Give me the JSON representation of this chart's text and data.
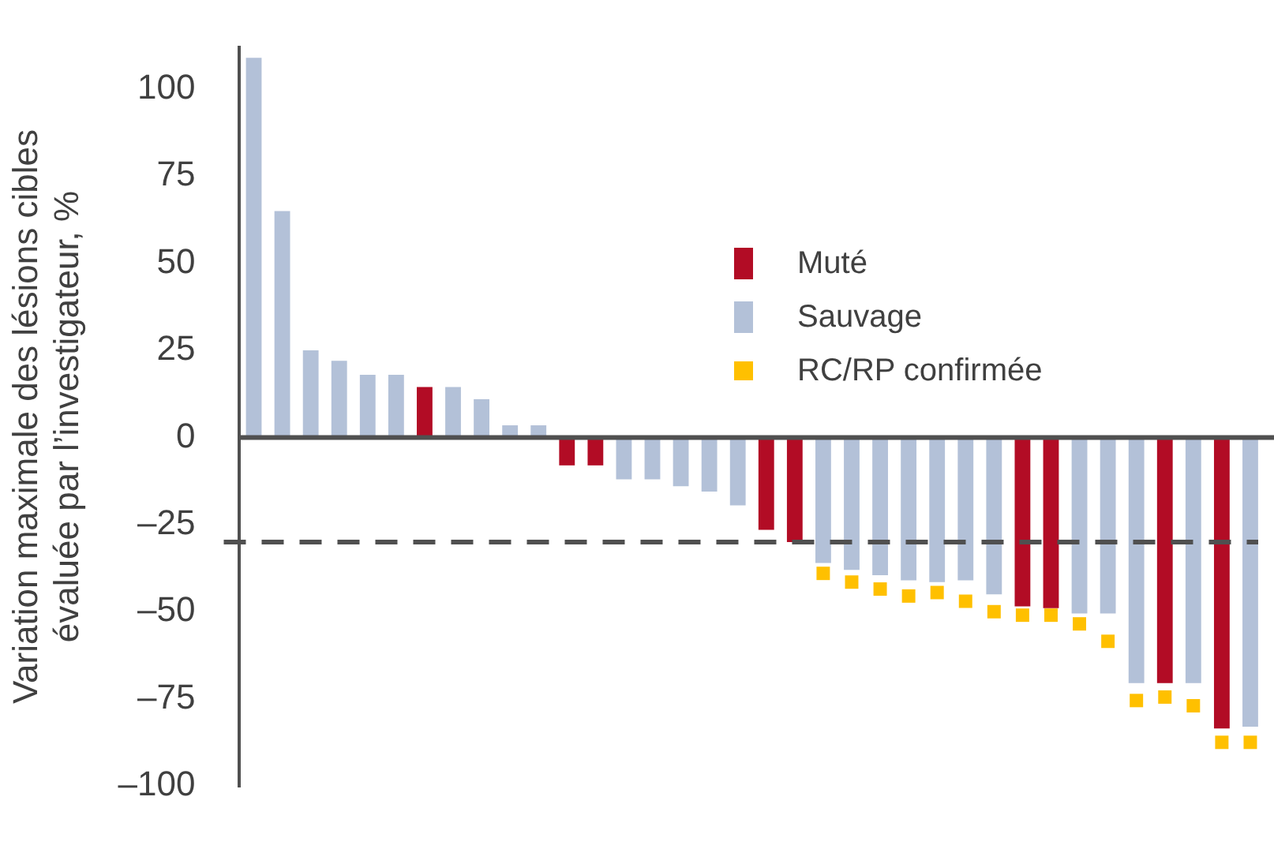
{
  "chart_data": {
    "type": "bar",
    "ylabel": "Variation maximale des lésions cibles\névaluée par l’investigateur, %",
    "categories": [
      null,
      null,
      null,
      null,
      null,
      null,
      null,
      null,
      null,
      null,
      null,
      null,
      null,
      null,
      null,
      null,
      null,
      null,
      null,
      null,
      null,
      null,
      null,
      null,
      null,
      null,
      null,
      null,
      null,
      null,
      null,
      null,
      null,
      null,
      null,
      null
    ],
    "series": [
      {
        "name": "Muté",
        "color": "#b20c25",
        "values": [
          null,
          null,
          null,
          null,
          null,
          null,
          14.5,
          null,
          null,
          null,
          null,
          -8,
          -8,
          null,
          null,
          null,
          null,
          null,
          -26.5,
          -30,
          null,
          null,
          null,
          null,
          null,
          null,
          null,
          -48.5,
          -49,
          null,
          null,
          null,
          -70.5,
          null,
          -83.5,
          null
        ]
      },
      {
        "name": "Sauvage",
        "color": "#b3c1d8",
        "values": [
          109,
          65,
          25,
          22,
          18,
          18,
          null,
          14.5,
          11,
          3.5,
          3.5,
          null,
          null,
          -12,
          -12,
          -14,
          -15.5,
          -19.5,
          null,
          null,
          -36,
          -38,
          -39.5,
          -41,
          -41.5,
          -41,
          -45,
          null,
          null,
          -50.5,
          -50.5,
          -70.5,
          null,
          -70.5,
          null,
          -83
        ]
      },
      {
        "name": "RC/RP confirmée",
        "type": "scatter",
        "color": "#ffc000",
        "values": [
          null,
          null,
          null,
          null,
          null,
          null,
          null,
          null,
          null,
          null,
          null,
          null,
          null,
          null,
          null,
          null,
          null,
          null,
          null,
          null,
          -39,
          -41.5,
          -43.5,
          -45.5,
          -44.5,
          -47,
          -50,
          -51,
          -51,
          -53.5,
          -58.5,
          -75.5,
          -74.5,
          -77,
          -87.5,
          -87.5
        ]
      }
    ],
    "marker": "square",
    "ylim": [
      -100,
      112
    ],
    "yticks": [
      {
        "value": -100,
        "label": "–100"
      },
      {
        "value": -75,
        "label": "–75"
      },
      {
        "value": -50,
        "label": "–50"
      },
      {
        "value": -25,
        "label": "–25"
      },
      0,
      25,
      50,
      75,
      100
    ],
    "ref_lines": [
      {
        "axis": "y",
        "value": -30,
        "color": "#505050",
        "line_style": "dashed"
      }
    ],
    "legend": "top right"
  }
}
